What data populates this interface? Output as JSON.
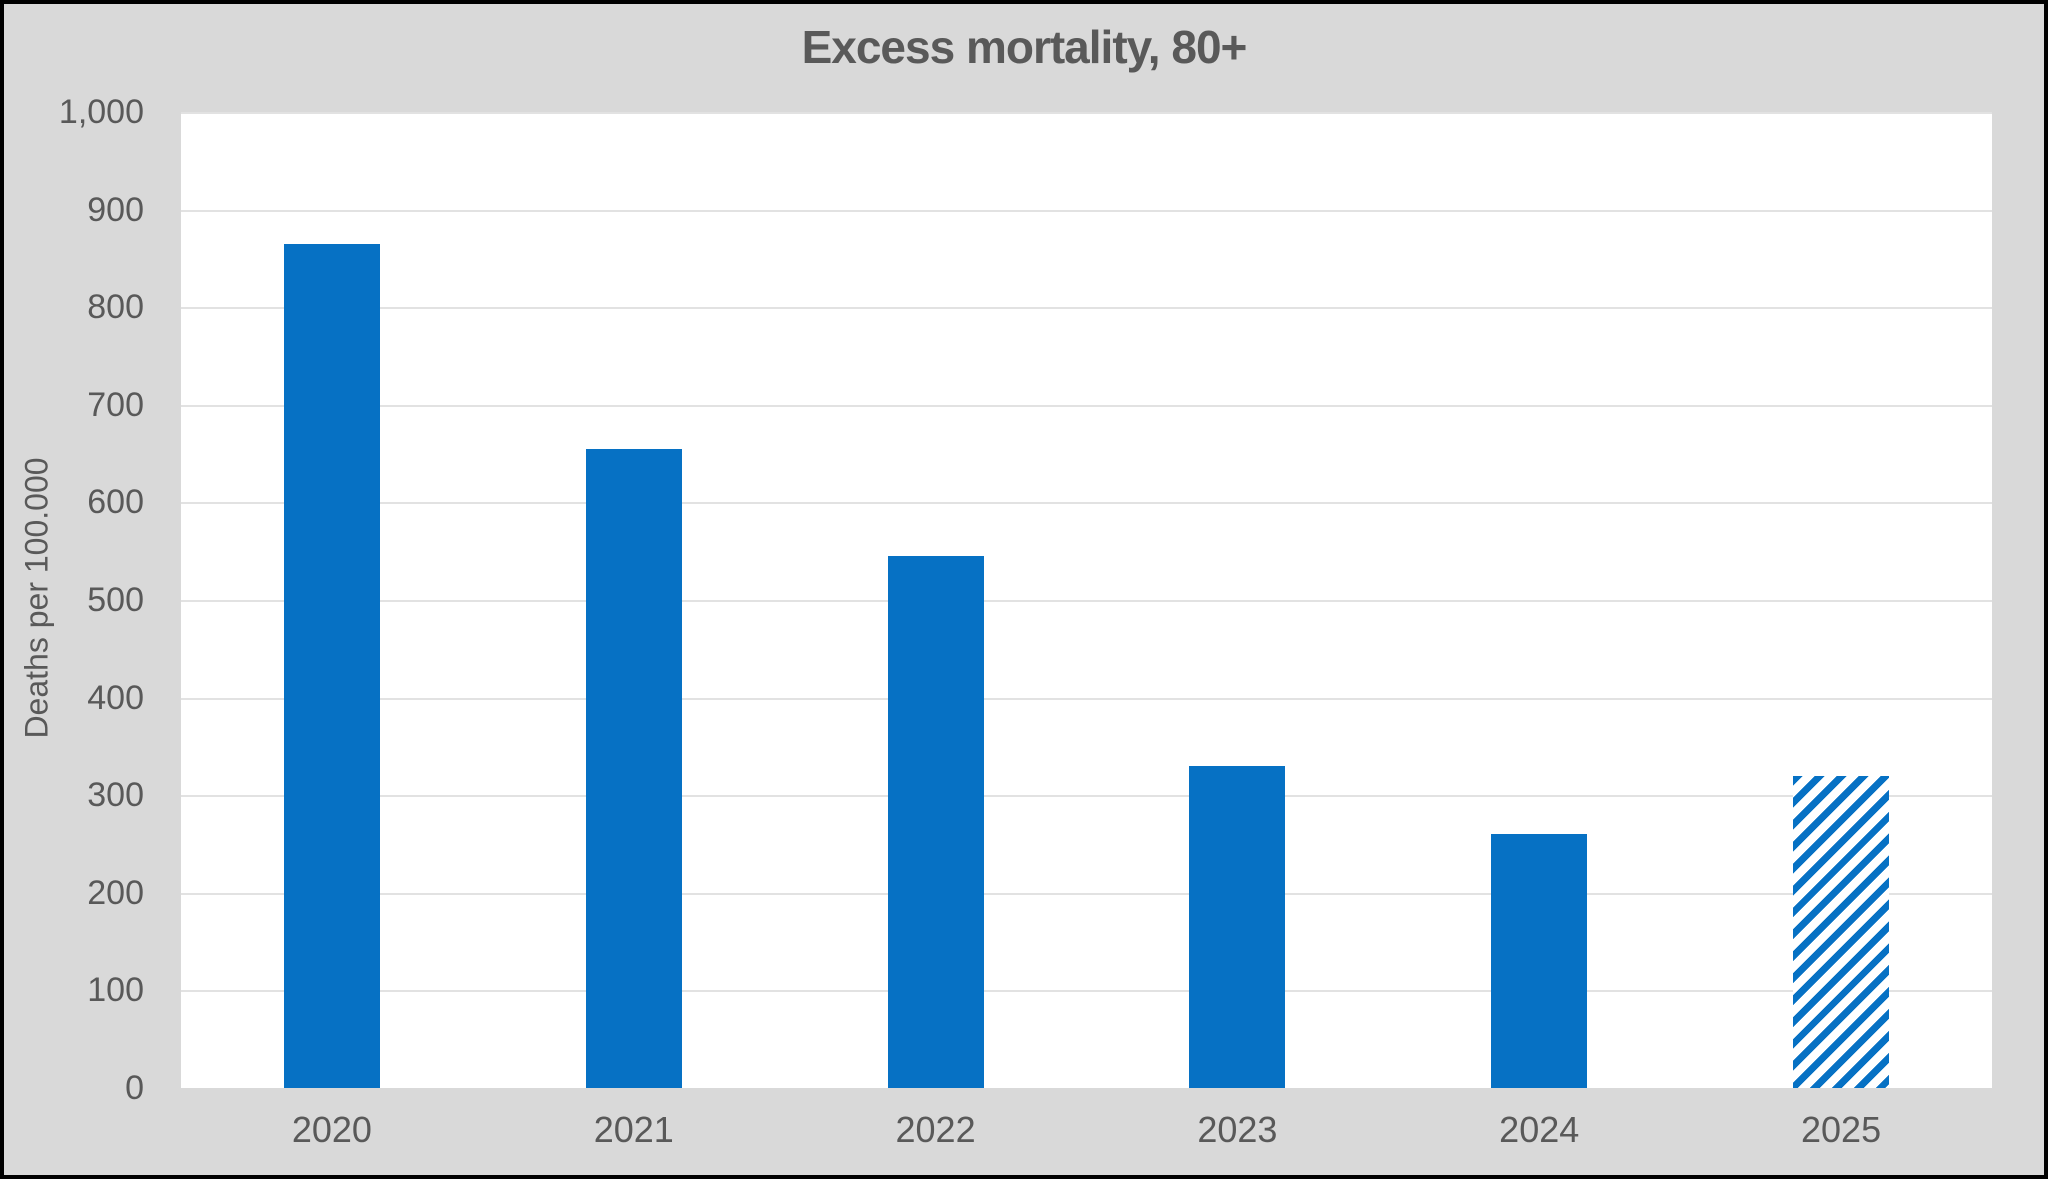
{
  "chart_data": {
    "type": "bar",
    "title": "Excess mortality, 80+",
    "xlabel": "",
    "ylabel": "Deaths per 100.000",
    "categories": [
      "2020",
      "2021",
      "2022",
      "2023",
      "2024",
      "2025"
    ],
    "values": [
      865,
      655,
      545,
      330,
      260,
      320
    ],
    "bar_styles": [
      "solid",
      "solid",
      "solid",
      "solid",
      "solid",
      "hatched"
    ],
    "ylim": [
      0,
      1000
    ],
    "ytick_interval": 100,
    "ytick_labels": [
      "0",
      "100",
      "200",
      "300",
      "400",
      "500",
      "600",
      "700",
      "800",
      "900",
      "1,000"
    ],
    "grid": true,
    "legend_position": "none",
    "colors": {
      "bar": "#0671C4",
      "background": "#D9D9D9",
      "plot_background": "#FFFFFF",
      "gridline": "#E2E2E2",
      "text": "#595959",
      "border": "#000000"
    }
  }
}
